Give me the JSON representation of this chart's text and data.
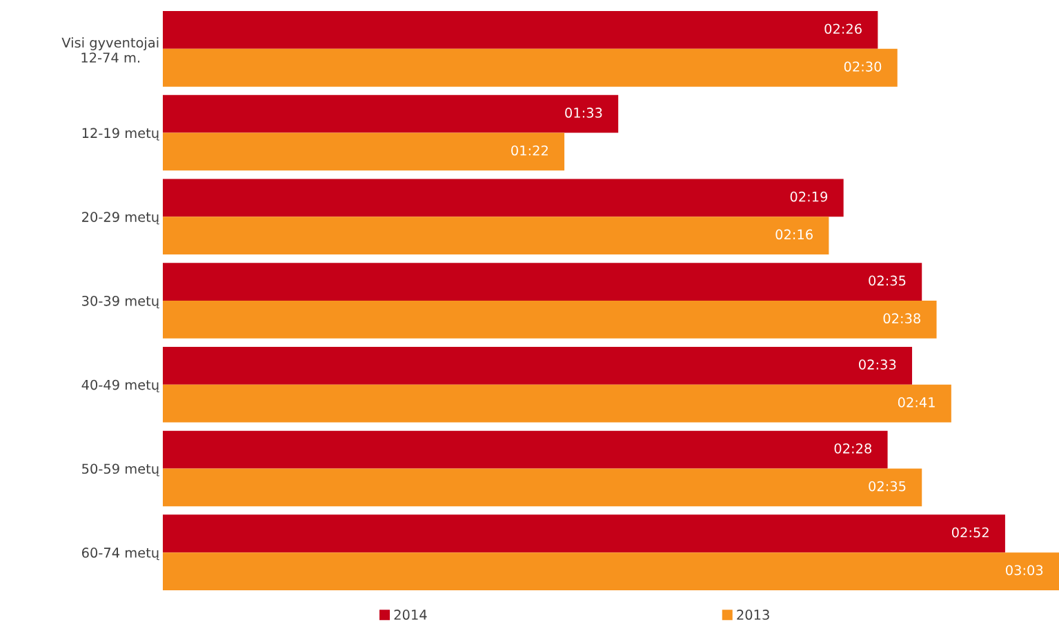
{
  "chart_data": {
    "type": "bar",
    "orientation": "horizontal",
    "tick_labels": "y",
    "grid": false,
    "legend": "bottom",
    "categories": [
      "Visi gyventojai\n12-74 m.",
      "12-19 metų",
      "20-29 metų",
      "30-39 metų",
      "40-49 metų",
      "50-59 metų",
      "60-74 metų"
    ],
    "series": [
      {
        "name": "2014",
        "color": "#c50018",
        "values": [
          146,
          93,
          139,
          155,
          153,
          148,
          172
        ],
        "value_labels": [
          "02:26",
          "01:33",
          "02:19",
          "02:35",
          "02:33",
          "02:28",
          "02:52"
        ]
      },
      {
        "name": "2013",
        "color": "#f7931e",
        "values": [
          150,
          82,
          136,
          158,
          161,
          155,
          183
        ],
        "value_labels": [
          "02:30",
          "01:22",
          "02:16",
          "02:38",
          "02:41",
          "02:35",
          "03:03"
        ]
      }
    ]
  }
}
